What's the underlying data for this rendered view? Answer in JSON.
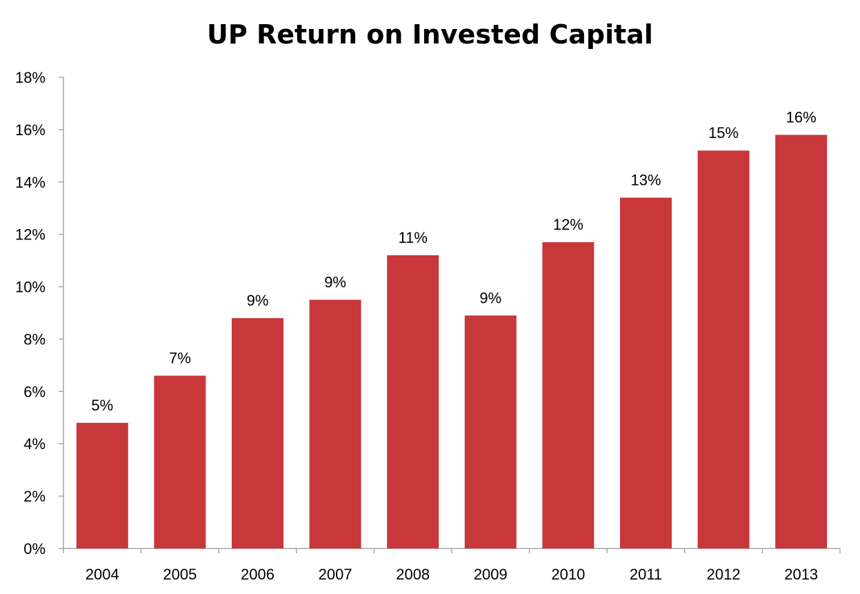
{
  "chart_data": {
    "type": "bar",
    "title": "UP Return on Invested Capital",
    "xlabel": "",
    "ylabel": "",
    "categories": [
      "2004",
      "2005",
      "2006",
      "2007",
      "2008",
      "2009",
      "2010",
      "2011",
      "2012",
      "2013"
    ],
    "values": [
      4.8,
      6.6,
      8.8,
      9.5,
      11.2,
      8.9,
      11.7,
      13.4,
      15.2,
      15.8
    ],
    "data_labels": [
      "5%",
      "7%",
      "9%",
      "9%",
      "11%",
      "9%",
      "12%",
      "13%",
      "15%",
      "16%"
    ],
    "ylim": [
      0,
      18
    ],
    "yticks": [
      0,
      2,
      4,
      6,
      8,
      10,
      12,
      14,
      16,
      18
    ],
    "ytick_labels": [
      "0%",
      "2%",
      "4%",
      "6%",
      "8%",
      "10%",
      "12%",
      "14%",
      "16%",
      "18%"
    ],
    "grid": false,
    "legend": "none",
    "colors": {
      "bar": "#C8373A",
      "axis": "#A6A6A6"
    }
  }
}
